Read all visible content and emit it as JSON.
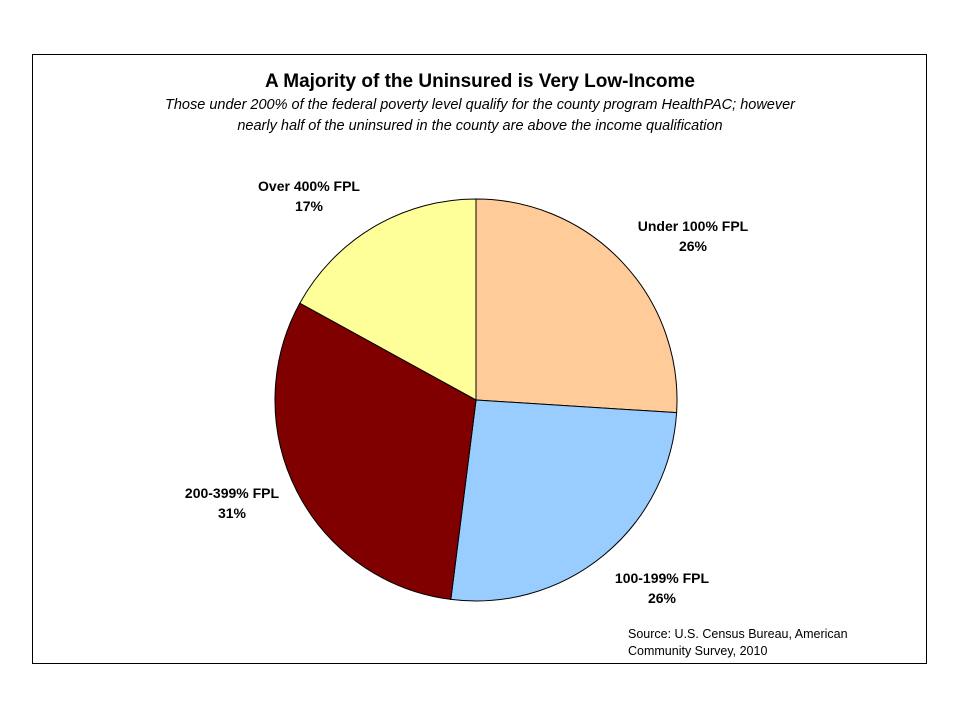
{
  "chart_data": {
    "type": "pie",
    "title": "A Majority of the Uninsured is Very Low-Income",
    "subtitle_lines": [
      "Those under 200% of the federal poverty level qualify for the county program HealthPAC; however",
      "nearly half of the uninsured in the county are above the income qualification"
    ],
    "slices": [
      {
        "label": "Under 100% FPL",
        "value": 26,
        "value_label": "26%",
        "color": "#FFCC99"
      },
      {
        "label": "100-199% FPL",
        "value": 26,
        "value_label": "26%",
        "color": "#99CCFF"
      },
      {
        "label": "200-399% FPL",
        "value": 31,
        "value_label": "31%",
        "color": "#800000"
      },
      {
        "label": "Over 400% FPL",
        "value": 17,
        "value_label": "17%",
        "color": "#FFFF99"
      }
    ],
    "start": "12 o'clock, clockwise",
    "legend": "none",
    "source_lines": [
      "Source: U.S. Census Bureau, American",
      "Community Survey, 2010"
    ]
  }
}
